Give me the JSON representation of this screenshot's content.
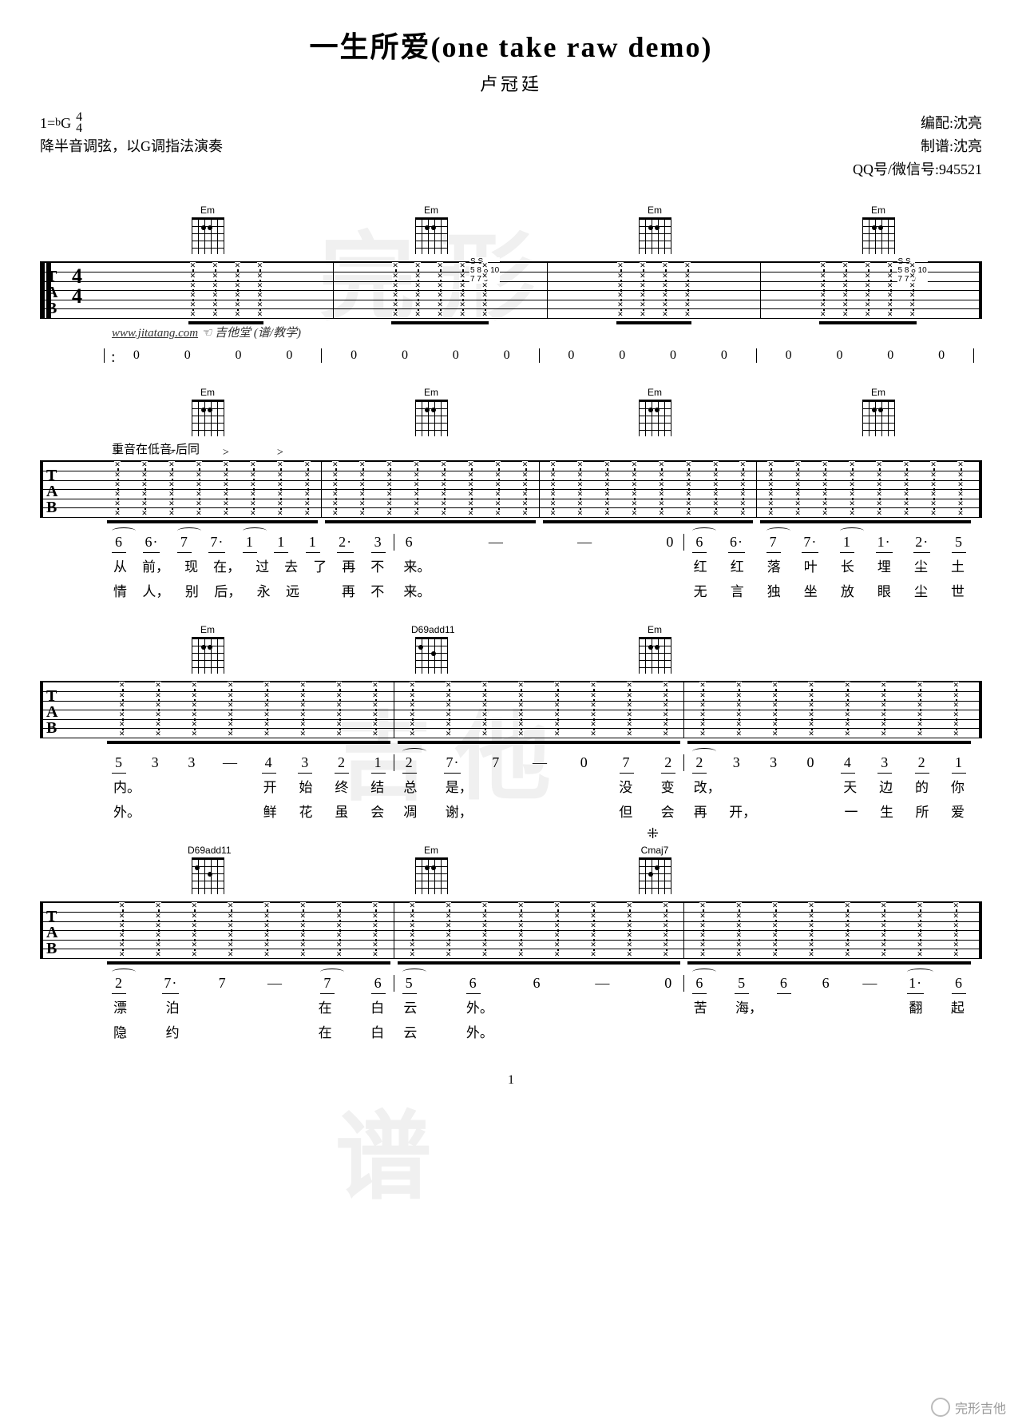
{
  "header": {
    "title": "一生所爱(one take raw demo)",
    "artist": "卢冠廷"
  },
  "meta": {
    "key": "1=",
    "flat": "b",
    "keyletter": "G",
    "tsig_top": "4",
    "tsig_bot": "4",
    "tuning_note": "降半音调弦，以G调指法演奏",
    "arranger_label": "编配:",
    "arranger": "沈亮",
    "transcriber_label": "制谱:",
    "transcriber": "沈亮",
    "contact_label": "QQ号/微信号:",
    "contact": "945521"
  },
  "url_line": {
    "url": "www.jitatang.com",
    "site": "吉他堂",
    "note": "(谱/教学)"
  },
  "chords": {
    "Em": "Em",
    "D69add11": "D69add11",
    "Cmaj7": "Cmaj7"
  },
  "annotations": {
    "accent_note": "重音在低音-后同",
    "S": "S"
  },
  "sys1_notation": [
    "0",
    "0",
    "0",
    "0",
    "0",
    "0",
    "0",
    "0",
    "0",
    "0",
    "0",
    "0",
    "0",
    "0",
    "0",
    "0"
  ],
  "sys2_lyrics": {
    "line1": [
      "从",
      "前，",
      "现",
      "在，",
      "过",
      "去",
      "了",
      "再",
      "不",
      "来。",
      "",
      "",
      "",
      "红",
      "红",
      "落",
      "叶",
      "长",
      "埋",
      "尘",
      "土"
    ],
    "line2": [
      "情",
      "人，",
      "别",
      "后，",
      "永",
      "远",
      "",
      "再",
      "不",
      "来。",
      "",
      "",
      "",
      "无",
      "言",
      "独",
      "坐",
      "放",
      "眼",
      "尘",
      "世"
    ],
    "notes": [
      "6",
      "6·",
      "7",
      "7·",
      "1",
      "1",
      "1",
      "2·",
      "3",
      "6",
      "—",
      "—",
      "0",
      "6",
      "6·",
      "7",
      "7·",
      "1",
      "1·",
      "2·",
      "5"
    ]
  },
  "sys3_lyrics": {
    "line1": [
      "内。",
      "",
      "",
      "开",
      "始",
      "终",
      "结",
      "总",
      "是，",
      "",
      "",
      "没",
      "变",
      "改，",
      "",
      "",
      "天",
      "边",
      "的",
      "你"
    ],
    "line2": [
      "外。",
      "",
      "",
      "鲜",
      "花",
      "虽",
      "会",
      "凋",
      "谢，",
      "",
      "",
      "但",
      "会",
      "再",
      "开，",
      "",
      "一",
      "生",
      "所",
      "爱"
    ],
    "notes": [
      "5",
      "3",
      "3",
      "—",
      "4",
      "3",
      "2",
      "1",
      "2",
      "7·",
      "7",
      "—",
      "0",
      "7",
      "2",
      "2",
      "3",
      "3",
      "0",
      "4",
      "3",
      "2",
      "1"
    ]
  },
  "sys4_lyrics": {
    "line1": [
      "漂",
      "泊",
      "",
      "",
      "在",
      "白",
      "云",
      "外。",
      "",
      "",
      "",
      "苦",
      "海，",
      "",
      "",
      "",
      "翻",
      "起"
    ],
    "line2": [
      "隐",
      "约",
      "",
      "",
      "在",
      "白",
      "云",
      "外。",
      "",
      "",
      "",
      "",
      "",
      "",
      "",
      "",
      "",
      ""
    ],
    "notes": [
      "2",
      "7·",
      "7",
      "—",
      "7",
      "6",
      "5",
      "6",
      "6",
      "—",
      "0",
      "6",
      "5",
      "6",
      "6",
      "—",
      "1·",
      "6"
    ]
  },
  "slide_notes": {
    "a": "5 8 8 10",
    "b": "7 7 9",
    "c": "5 8 8 10",
    "d": "7 7 9"
  },
  "pagenum": "1",
  "footer": "完形吉他"
}
